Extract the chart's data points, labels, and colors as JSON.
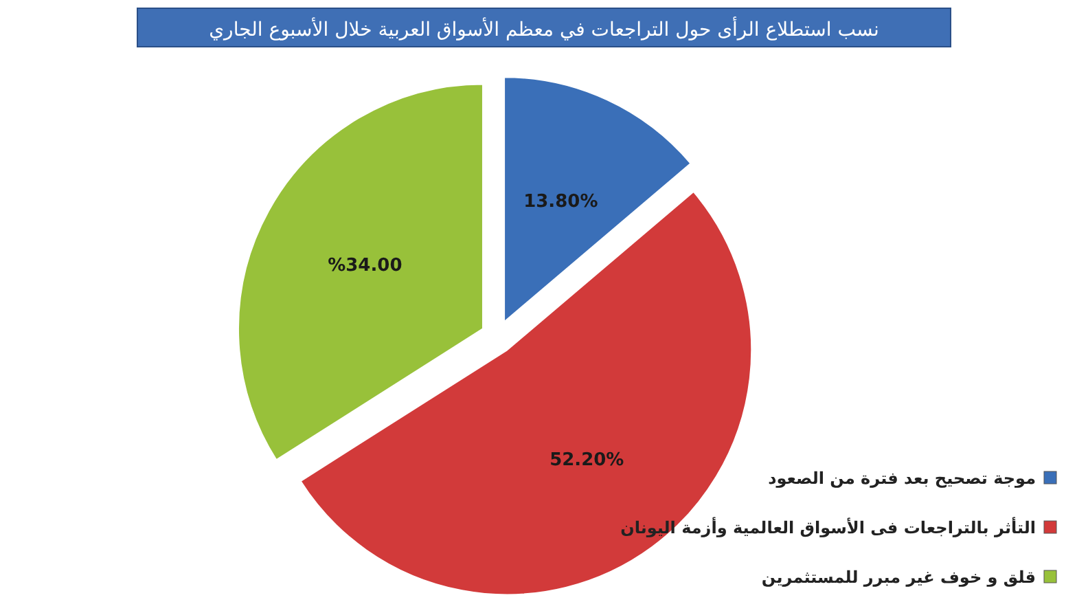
{
  "chart_data": {
    "type": "pie",
    "title": "نسب استطلاع الرأى حول التراجعات في معظم الأسواق العربية خلال الأسبوع الجاري",
    "categories": [
      "موجة تصحيح بعد فترة من الصعود",
      "التأثر بالتراجعات فى الأسواق العالمية وأزمة اليونان",
      "قلق و خوف غير مبرر للمستثمرين"
    ],
    "values": [
      13.8,
      52.2,
      34.0
    ],
    "colors": [
      "#3a6fb8",
      "#d23a3a",
      "#98c13a"
    ],
    "value_labels": [
      "13.80%",
      "52.20%",
      "%34.00"
    ],
    "legend": "bottom right"
  }
}
